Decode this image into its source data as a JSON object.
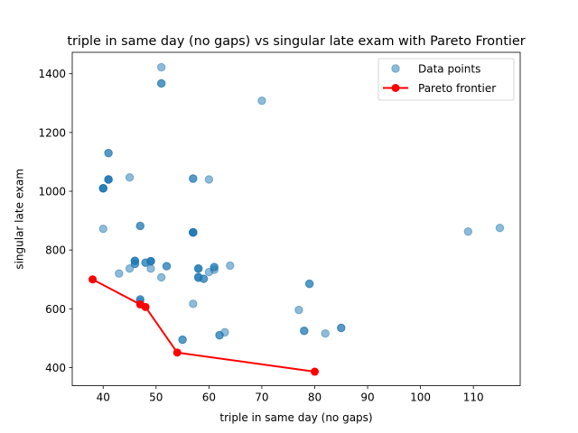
{
  "chart_data": {
    "type": "scatter",
    "title": "triple in same day (no gaps) vs singular late exam with Pareto Frontier",
    "xlabel": "triple in same day (no gaps)",
    "ylabel": "singular late exam",
    "xlim": [
      34.15,
      118.85
    ],
    "ylim": [
      338.2,
      1472.8
    ],
    "xticks": [
      40,
      50,
      60,
      70,
      80,
      90,
      100,
      110
    ],
    "yticks": [
      400,
      600,
      800,
      1000,
      1200,
      1400
    ],
    "grid": false,
    "legend_position": "upper right",
    "series": [
      {
        "name": "Data points",
        "kind": "scatter",
        "color": "#1f77b4",
        "alpha": 0.5,
        "points": [
          [
            51,
            1422
          ],
          [
            51,
            1367
          ],
          [
            51,
            1367
          ],
          [
            70,
            1308
          ],
          [
            41,
            1130
          ],
          [
            41,
            1130
          ],
          [
            45,
            1047
          ],
          [
            57,
            1043
          ],
          [
            57,
            1043
          ],
          [
            60,
            1040
          ],
          [
            41,
            1040
          ],
          [
            41,
            1040
          ],
          [
            41,
            1040
          ],
          [
            41,
            1040
          ],
          [
            40,
            1010
          ],
          [
            40,
            1010
          ],
          [
            40,
            1010
          ],
          [
            40,
            1010
          ],
          [
            47,
            882
          ],
          [
            47,
            882
          ],
          [
            40,
            872
          ],
          [
            57,
            860
          ],
          [
            57,
            860
          ],
          [
            57,
            860
          ],
          [
            57,
            860
          ],
          [
            57,
            860
          ],
          [
            109,
            863
          ],
          [
            115,
            875
          ],
          [
            46,
            763
          ],
          [
            46,
            763
          ],
          [
            46,
            763
          ],
          [
            46,
            753
          ],
          [
            46,
            753
          ],
          [
            48,
            757
          ],
          [
            48,
            757
          ],
          [
            49,
            762
          ],
          [
            49,
            762
          ],
          [
            49,
            762
          ],
          [
            49,
            762
          ],
          [
            45,
            737
          ],
          [
            43,
            720
          ],
          [
            49,
            737
          ],
          [
            52,
            745
          ],
          [
            52,
            745
          ],
          [
            58,
            737
          ],
          [
            58,
            737
          ],
          [
            58,
            737
          ],
          [
            60,
            725
          ],
          [
            61,
            733
          ],
          [
            61,
            742
          ],
          [
            61,
            742
          ],
          [
            64,
            747
          ],
          [
            51,
            707
          ],
          [
            57,
            617
          ],
          [
            58,
            708
          ],
          [
            58,
            708
          ],
          [
            58,
            705
          ],
          [
            59,
            702
          ],
          [
            59,
            702
          ],
          [
            47,
            632
          ],
          [
            47,
            632
          ],
          [
            47,
            625
          ],
          [
            79,
            685
          ],
          [
            79,
            685
          ],
          [
            77,
            596
          ],
          [
            55,
            495
          ],
          [
            55,
            495
          ],
          [
            62,
            510
          ],
          [
            62,
            510
          ],
          [
            63,
            520
          ],
          [
            78,
            525
          ],
          [
            78,
            525
          ],
          [
            82,
            516
          ],
          [
            85,
            535
          ],
          [
            85,
            535
          ]
        ]
      },
      {
        "name": "Pareto frontier",
        "kind": "line",
        "color": "#ff0000",
        "points": [
          [
            38,
            700
          ],
          [
            47,
            615
          ],
          [
            48,
            606
          ],
          [
            54,
            451
          ],
          [
            80,
            386
          ]
        ]
      }
    ]
  }
}
